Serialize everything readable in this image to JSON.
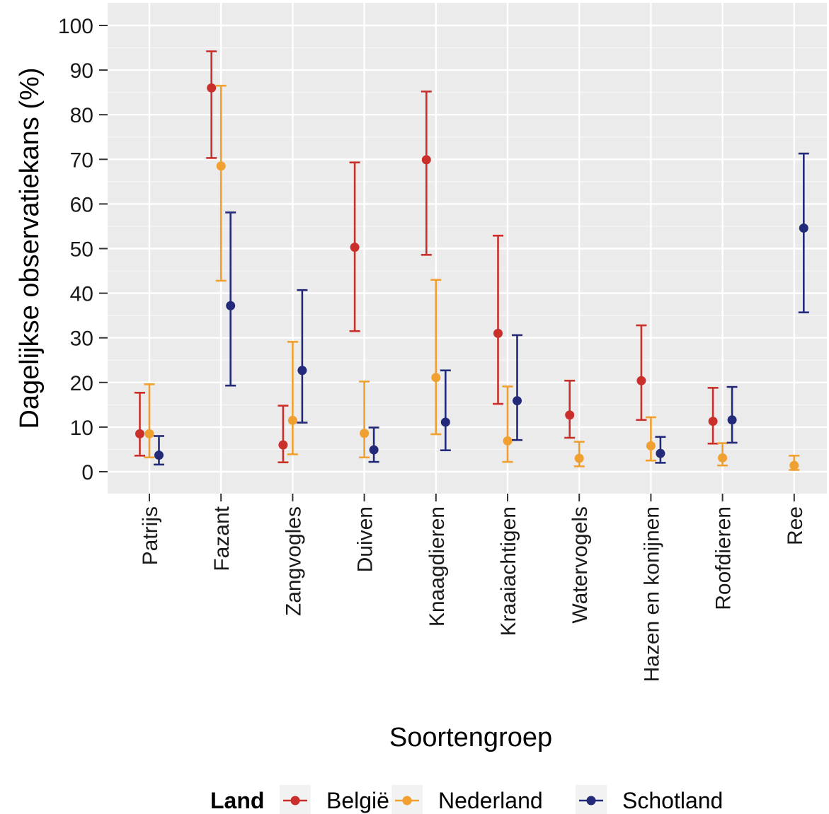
{
  "chart_data": {
    "type": "scatter",
    "title": "",
    "xlabel": "Soortengroep",
    "ylabel": "Dagelijkse observatiekans (%)",
    "ylim": [
      -5,
      105
    ],
    "yticks": [
      0,
      10,
      20,
      30,
      40,
      50,
      60,
      70,
      80,
      90,
      100
    ],
    "grid": true,
    "legend": {
      "title": "Land",
      "position": "bottom"
    },
    "categories": [
      "Patrijs",
      "Fazant",
      "Zangvogles",
      "Duiven",
      "Knaagdieren",
      "Kraaiachtigen",
      "Watervogels",
      "Hazen en konijnen",
      "Roofdieren",
      "Ree"
    ],
    "series": [
      {
        "name": "België",
        "color": "#c9302c",
        "points": [
          {
            "category": "Patrijs",
            "y": 8.5,
            "low": 3.6,
            "high": 17.7
          },
          {
            "category": "Fazant",
            "y": 86.0,
            "low": 70.3,
            "high": 94.2
          },
          {
            "category": "Zangvogles",
            "y": 6.0,
            "low": 2.1,
            "high": 14.8
          },
          {
            "category": "Duiven",
            "y": 50.3,
            "low": 31.5,
            "high": 69.3
          },
          {
            "category": "Knaagdieren",
            "y": 69.9,
            "low": 48.6,
            "high": 85.2
          },
          {
            "category": "Kraaiachtigen",
            "y": 31.0,
            "low": 15.2,
            "high": 52.9
          },
          {
            "category": "Watervogels",
            "y": 12.7,
            "low": 7.6,
            "high": 20.4
          },
          {
            "category": "Hazen en konijnen",
            "y": 20.4,
            "low": 11.6,
            "high": 32.8
          },
          {
            "category": "Roofdieren",
            "y": 11.3,
            "low": 6.3,
            "high": 18.8
          }
        ]
      },
      {
        "name": "Nederland",
        "color": "#f0a030",
        "points": [
          {
            "category": "Patrijs",
            "y": 8.5,
            "low": 3.2,
            "high": 19.6
          },
          {
            "category": "Fazant",
            "y": 68.5,
            "low": 42.8,
            "high": 86.5
          },
          {
            "category": "Zangvogles",
            "y": 11.5,
            "low": 3.9,
            "high": 29.1
          },
          {
            "category": "Duiven",
            "y": 8.6,
            "low": 3.2,
            "high": 20.2
          },
          {
            "category": "Knaagdieren",
            "y": 21.1,
            "low": 8.4,
            "high": 43.0
          },
          {
            "category": "Kraaiachtigen",
            "y": 6.9,
            "low": 2.2,
            "high": 19.1
          },
          {
            "category": "Watervogels",
            "y": 3.0,
            "low": 1.2,
            "high": 6.7
          },
          {
            "category": "Hazen en konijnen",
            "y": 5.8,
            "low": 2.5,
            "high": 12.2
          },
          {
            "category": "Roofdieren",
            "y": 3.1,
            "low": 1.4,
            "high": 6.4
          },
          {
            "category": "Ree",
            "y": 1.4,
            "low": 0.4,
            "high": 3.6
          }
        ]
      },
      {
        "name": "Schotland",
        "color": "#232a7a",
        "points": [
          {
            "category": "Patrijs",
            "y": 3.7,
            "low": 1.6,
            "high": 8.0
          },
          {
            "category": "Fazant",
            "y": 37.2,
            "low": 19.3,
            "high": 58.1
          },
          {
            "category": "Zangvogles",
            "y": 22.7,
            "low": 11.0,
            "high": 40.7
          },
          {
            "category": "Duiven",
            "y": 4.9,
            "low": 2.2,
            "high": 9.9
          },
          {
            "category": "Knaagdieren",
            "y": 11.1,
            "low": 4.8,
            "high": 22.7
          },
          {
            "category": "Kraaiachtigen",
            "y": 15.9,
            "low": 7.1,
            "high": 30.6
          },
          {
            "category": "Hazen en konijnen",
            "y": 4.1,
            "low": 2.0,
            "high": 7.8
          },
          {
            "category": "Roofdieren",
            "y": 11.6,
            "low": 6.5,
            "high": 19.0
          },
          {
            "category": "Ree",
            "y": 54.6,
            "low": 35.7,
            "high": 71.3
          }
        ]
      }
    ]
  }
}
